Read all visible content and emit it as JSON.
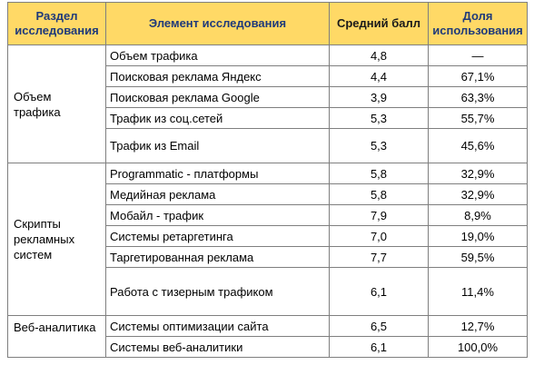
{
  "headers": {
    "section": [
      "Раздел",
      "исследования"
    ],
    "element": "Элемент исследования",
    "score": "Средний балл",
    "share": [
      "Доля",
      "использования"
    ]
  },
  "groups": [
    {
      "title": [
        "Объем",
        "трафика"
      ],
      "rows": [
        {
          "name": "Объем трафика",
          "score": "4,8",
          "share": "—"
        },
        {
          "name": "Поисковая реклама Яндекс",
          "score": "4,4",
          "share": "67,1%"
        },
        {
          "name": "Поисковая реклама Google",
          "score": "3,9",
          "share": "63,3%"
        },
        {
          "name": "Трафик из соц.сетей",
          "score": "5,3",
          "share": "55,7%"
        },
        {
          "name": "Трафик из Email",
          "score": "5,3",
          "share": "45,6%"
        }
      ]
    },
    {
      "title": [
        "Скрипты",
        "рекламных",
        "систем"
      ],
      "rows": [
        {
          "name": "Programmatic - платформы",
          "score": "5,8",
          "share": "32,9%"
        },
        {
          "name": "Медийная реклама",
          "score": "5,8",
          "share": "32,9%"
        },
        {
          "name": "Мобайл - трафик",
          "score": "7,9",
          "share": "8,9%"
        },
        {
          "name": "Системы ретаргетинга",
          "score": "7,0",
          "share": "19,0%"
        },
        {
          "name": "Таргетированная реклама",
          "score": "7,7",
          "share": "59,5%"
        },
        {
          "name": "Работа с тизерным трафиком",
          "score": "6,1",
          "share": "11,4%"
        }
      ]
    },
    {
      "title": [
        "Веб-аналитика"
      ],
      "rows": [
        {
          "name": "Системы оптимизации сайта",
          "score": "6,5",
          "share": "12,7%"
        },
        {
          "name": "Системы веб-аналитики",
          "score": "6,1",
          "share": "100,0%"
        }
      ]
    }
  ]
}
